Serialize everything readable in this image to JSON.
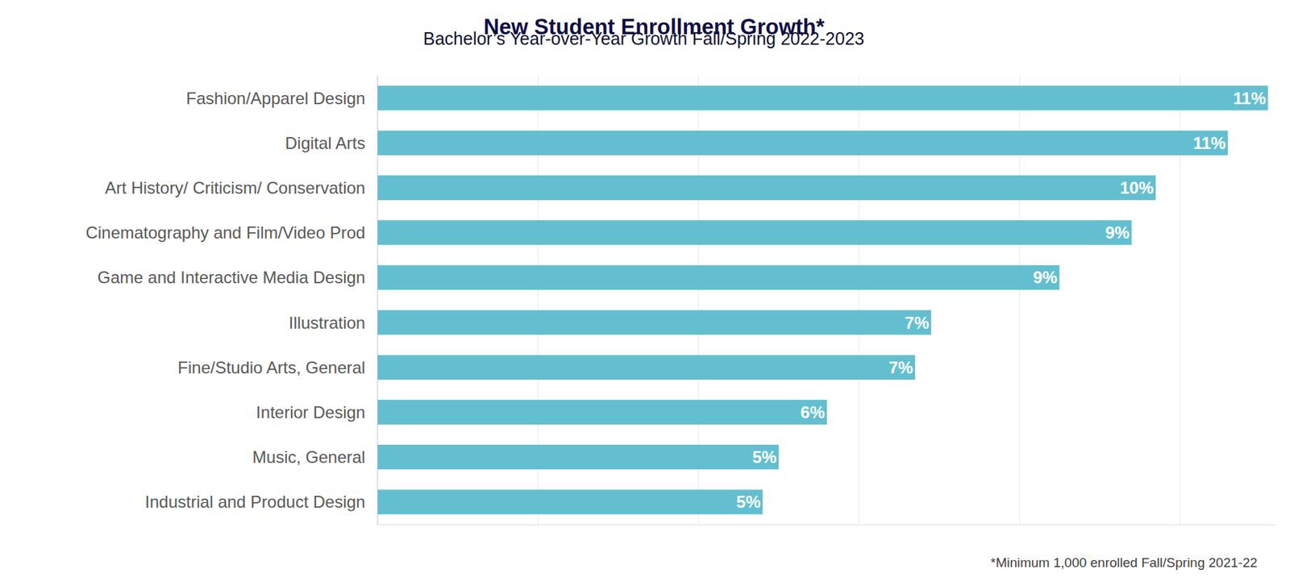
{
  "chart_data": {
    "type": "bar",
    "orientation": "horizontal",
    "title": "New Student Enrollment Growth*",
    "subtitle": "Bachelor’s Year-over-Year Growth Fall/Spring 2022-2023",
    "annotations": [
      "*Minimum 1,000 enrolled Fall/Spring 2021-22"
    ],
    "categories": [
      "Fashion/Apparel Design",
      "Digital Arts",
      "Art History/ Criticism/ Conservation",
      "Cinematography and Film/Video Prod",
      "Game and Interactive Media Design",
      "Illustration",
      "Fine/Studio Arts, General",
      "Interior Design",
      "Music, General",
      "Industrial and Product Design"
    ],
    "values": [
      11.1,
      10.6,
      9.7,
      9.4,
      8.5,
      6.9,
      6.7,
      5.6,
      5.0,
      4.8
    ],
    "value_labels": [
      "11%",
      "11%",
      "10%",
      "9%",
      "9%",
      "7%",
      "7%",
      "6%",
      "5%",
      "5%"
    ],
    "color": "#63bfd0",
    "xlim": [
      0,
      11.2
    ],
    "xticks": [
      0,
      2,
      4,
      6,
      8,
      10
    ],
    "grid": true,
    "data_labels": true,
    "tick_labels": "y"
  }
}
